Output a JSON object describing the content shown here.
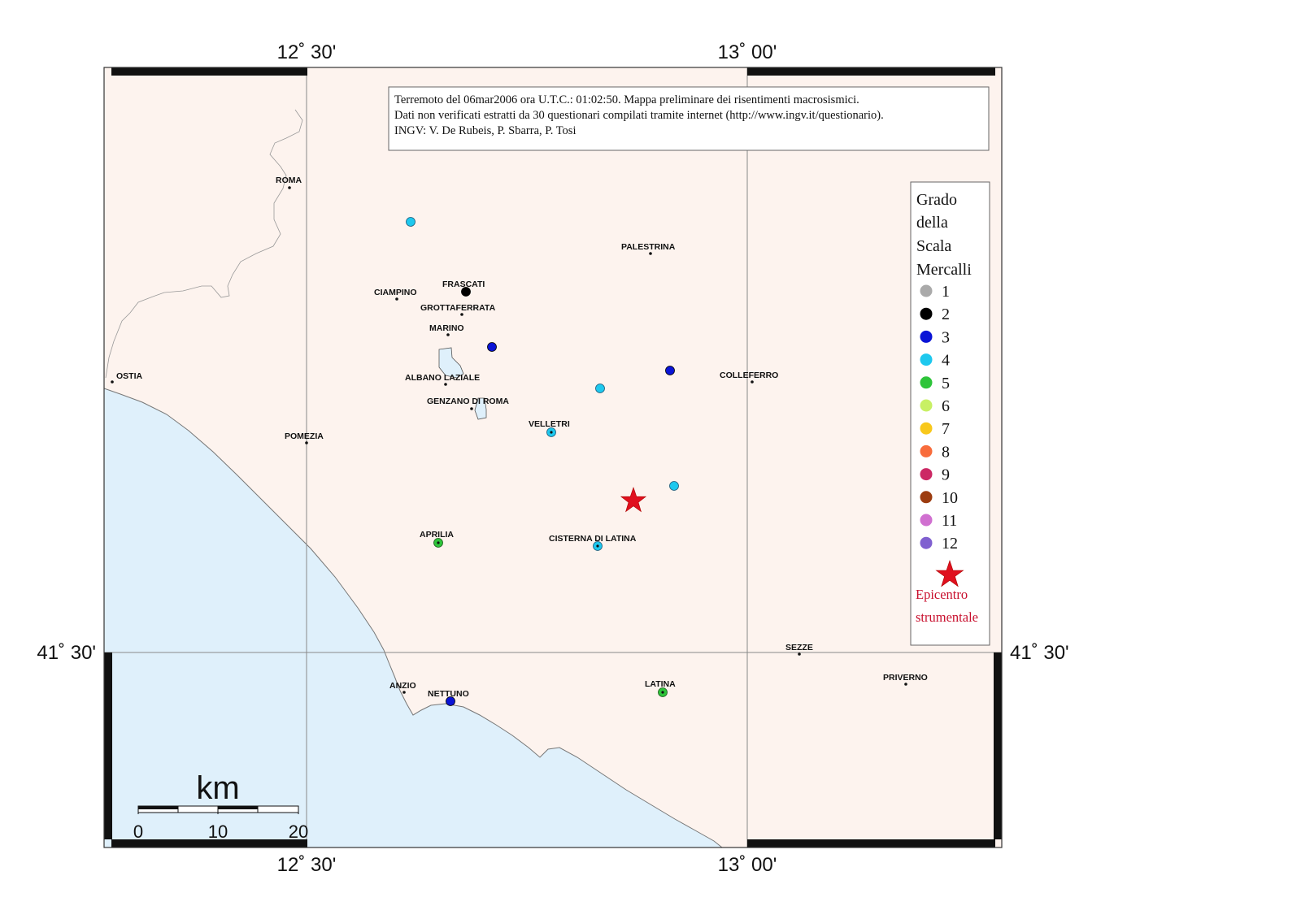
{
  "info_box": {
    "line1": "Terremoto del 06mar2006 ora U.T.C.: 01:02:50.  Mappa preliminare dei risentimenti macrosismici.",
    "line2": "Dati non verificati estratti da 30 questionari compilati tramite internet (http://www.ingv.it/questionario).",
    "line3": "INGV: V.  De Rubeis, P.  Sbarra, P.  Tosi"
  },
  "coords": {
    "lon_1230": "12˚ 30'",
    "lon_1300": "13˚ 00'",
    "lat_4130": "41˚ 30'"
  },
  "legend": {
    "title_lines": [
      "Grado",
      "della",
      "Scala",
      "Mercalli"
    ],
    "epicentro_line1": "Epicentro",
    "epicentro_line2": "strumentale",
    "grades": [
      {
        "label": "1",
        "color": "#aaaaaa"
      },
      {
        "label": "2",
        "color": "#000000"
      },
      {
        "label": "3",
        "color": "#0a14d6"
      },
      {
        "label": "4",
        "color": "#1ec8ee"
      },
      {
        "label": "5",
        "color": "#2ec43a"
      },
      {
        "label": "6",
        "color": "#c8f064"
      },
      {
        "label": "7",
        "color": "#f8c81c"
      },
      {
        "label": "8",
        "color": "#f86c3c"
      },
      {
        "label": "9",
        "color": "#cc2864"
      },
      {
        "label": "10",
        "color": "#9c3c10"
      },
      {
        "label": "11",
        "color": "#d070d0"
      },
      {
        "label": "12",
        "color": "#8060d0"
      }
    ]
  },
  "towns": [
    {
      "name": "ROMA"
    },
    {
      "name": "PALESTRINA"
    },
    {
      "name": "FRASCATI"
    },
    {
      "name": "CIAMPINO"
    },
    {
      "name": "GROTTAFERRATA"
    },
    {
      "name": "MARINO"
    },
    {
      "name": "OSTIA"
    },
    {
      "name": "ALBANO LAZIALE"
    },
    {
      "name": "COLLEFERRO"
    },
    {
      "name": "GENZANO DI ROMA"
    },
    {
      "name": "VELLETRI"
    },
    {
      "name": "POMEZIA"
    },
    {
      "name": "APRILIA"
    },
    {
      "name": "CISTERNA DI LATINA"
    },
    {
      "name": "SEZZE"
    },
    {
      "name": "PRIVERNO"
    },
    {
      "name": "ANZIO"
    },
    {
      "name": "NETTUNO"
    },
    {
      "name": "LATINA"
    }
  ],
  "observations": [
    {
      "grade": "4"
    },
    {
      "grade": "2"
    },
    {
      "grade": "3"
    },
    {
      "grade": "3"
    },
    {
      "grade": "4"
    },
    {
      "grade": "4"
    },
    {
      "grade": "4"
    },
    {
      "grade": "5"
    },
    {
      "grade": "4"
    },
    {
      "grade": "3"
    },
    {
      "grade": "5"
    }
  ],
  "scale_bar": {
    "unit": "km",
    "ticks": [
      "0",
      "10",
      "20"
    ]
  },
  "colors": {
    "land": "#fdf3ee",
    "sea": "#dff0fb",
    "epicenter": "#e0101e"
  }
}
